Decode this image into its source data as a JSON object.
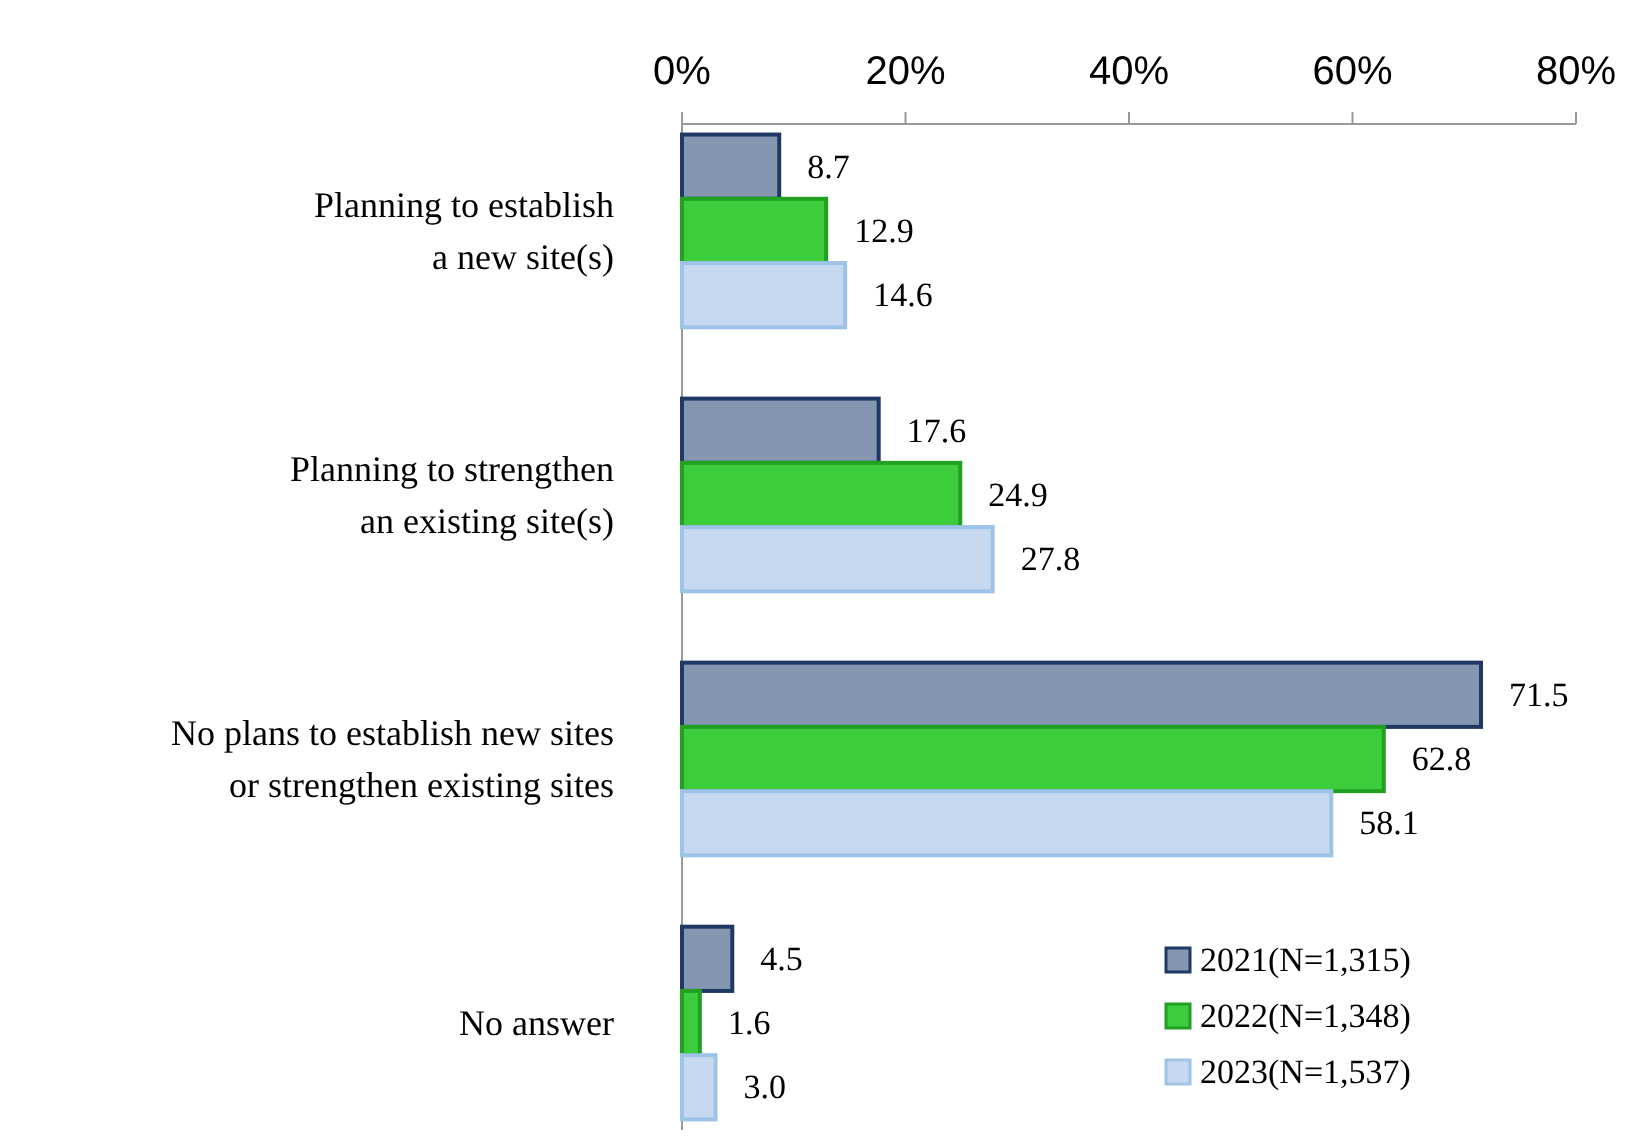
{
  "chart_data": {
    "type": "bar",
    "orientation": "horizontal",
    "categories": [
      "Planning to establish\na new site(s)",
      "Planning to strengthen\nan existing site(s)",
      "No plans to establish new sites\nor strengthen existing sites",
      "No answer"
    ],
    "series": [
      {
        "name": "2021(N=1,315)",
        "color": "#8496b0",
        "values": [
          8.7,
          17.6,
          71.5,
          4.5
        ]
      },
      {
        "name": "2022(N=1,348)",
        "color": "#3ccc3c",
        "values": [
          12.9,
          24.9,
          62.8,
          1.6
        ]
      },
      {
        "name": "2023(N=1,537)",
        "color": "#c6d9f1",
        "values": [
          14.6,
          27.8,
          58.1,
          3.0
        ]
      }
    ],
    "xlim": [
      0,
      80
    ],
    "xticks": [
      {
        "value": 0,
        "label": "0%"
      },
      {
        "value": 20,
        "label": "20%"
      },
      {
        "value": 40,
        "label": "40%"
      },
      {
        "value": 60,
        "label": "60%"
      },
      {
        "value": 80,
        "label": "80%"
      }
    ],
    "value_labels": [
      [
        "8.7",
        "17.6",
        "71.5",
        "4.5"
      ],
      [
        "12.9",
        "24.9",
        "62.8",
        "1.6"
      ],
      [
        "14.6",
        "27.8",
        "58.1",
        "3.0"
      ]
    ],
    "grid": false,
    "legend": "bottom right"
  }
}
